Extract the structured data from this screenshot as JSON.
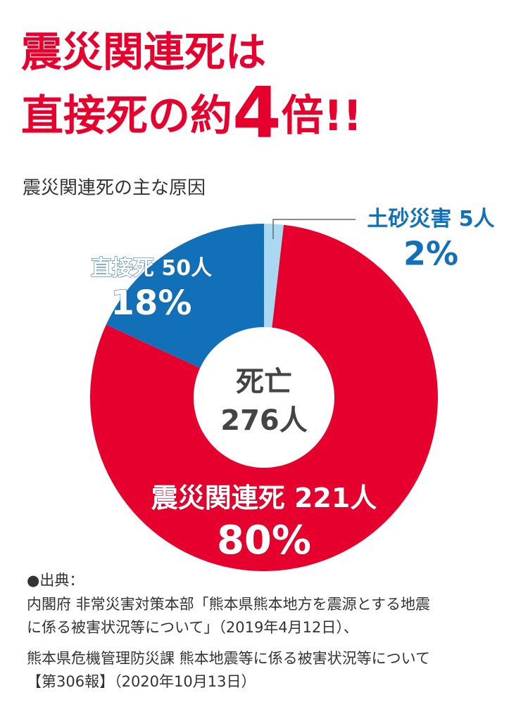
{
  "chart_data": {
    "type": "donut",
    "title_line1": "震災関連死は",
    "title_line2": [
      "直接死の約",
      "4",
      "倍!!"
    ],
    "subtitle": "震災関連死の主な原因",
    "categories": [
      "土砂災害",
      "震災関連死",
      "直接死"
    ],
    "values": [
      5,
      221,
      50
    ],
    "value_labels": [
      "5人",
      "221人",
      "50人"
    ],
    "percent_labels": [
      "2%",
      "80%",
      "18%"
    ],
    "colors": [
      "#a9d9f2",
      "#e5002d",
      "#1170b8"
    ],
    "center_text": [
      "死亡",
      "276人"
    ]
  },
  "source": {
    "heading": "●出典：",
    "lines": [
      "内閣府 非常災害対策本部「熊本県熊本地方を震源とする地震",
      "に係る被害状況等について」（2019年4月12日）、",
      "熊本県危機管理防災課 熊本地震等に係る被害状況等について",
      "【第306報】（2020年10月13日）"
    ]
  }
}
